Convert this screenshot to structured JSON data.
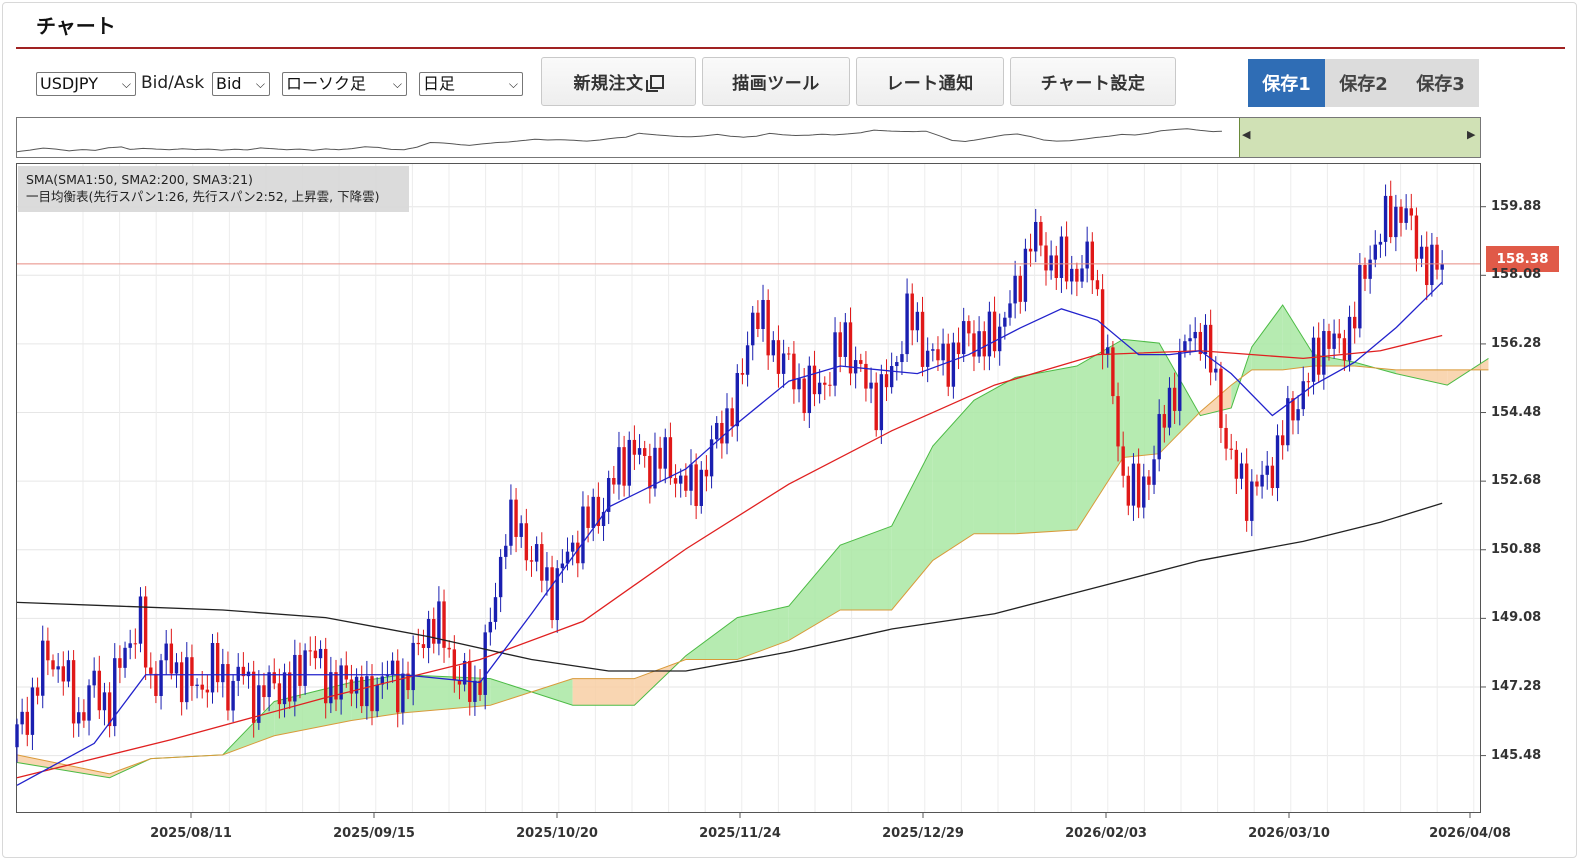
{
  "title": "チャート",
  "toolbar": {
    "symbol": "USDJPY",
    "bidask_label": "Bid/Ask",
    "bidask_value": "Bid",
    "chart_type": "ローソク足",
    "timeframe": "日足",
    "new_order": "新規注文",
    "draw_tools": "描画ツール",
    "rate_alert": "レート通知",
    "chart_settings": "チャート設定",
    "saves": [
      "保存1",
      "保存2",
      "保存3"
    ]
  },
  "legend": {
    "line1": "SMA(SMA1:50, SMA2:200, SMA3:21)",
    "line2": "一目均衡表(先行スパン1:26, 先行スパン2:52, 上昇雲, 下降雲)"
  },
  "current_price": "158.38",
  "colors": {
    "accent": "#2f6db5",
    "up_candle": "#1a1fb0",
    "down_candle": "#e01818",
    "sma50": "#e02020",
    "sma200": "#222222",
    "sma21": "#2222cc",
    "cloud_up": "#7fdc7f",
    "cloud_down": "#f5b47a",
    "price_tag": "#e05a48"
  },
  "chart_data": {
    "type": "candlestick",
    "symbol": "USDJPY",
    "y_ticks": [
      "159.88",
      "158.08",
      "156.28",
      "154.48",
      "152.68",
      "150.88",
      "149.08",
      "147.28",
      "145.48"
    ],
    "x_ticks": [
      "2025/08/11",
      "2025/09/15",
      "2025/10/20",
      "2025/11/24",
      "2025/12/29",
      "2026/02/03",
      "2026/03/10",
      "2026/04/08"
    ],
    "ylim": [
      144.0,
      161.0
    ],
    "last_price": 158.38,
    "close_path": [
      [
        0,
        146.0
      ],
      [
        3,
        147.0
      ],
      [
        6,
        148.2
      ],
      [
        9,
        147.6
      ],
      [
        12,
        146.5
      ],
      [
        15,
        147.3
      ],
      [
        18,
        146.8
      ],
      [
        21,
        148.4
      ],
      [
        24,
        148.9
      ],
      [
        26,
        147.4
      ],
      [
        29,
        148.0
      ],
      [
        32,
        147.6
      ],
      [
        35,
        147.2
      ],
      [
        38,
        147.8
      ],
      [
        41,
        147.3
      ],
      [
        44,
        147.6
      ],
      [
        47,
        146.9
      ],
      [
        50,
        147.5
      ],
      [
        53,
        147.1
      ],
      [
        56,
        148.3
      ],
      [
        59,
        147.8
      ],
      [
        62,
        147.2
      ],
      [
        65,
        147.6
      ],
      [
        68,
        146.8
      ],
      [
        71,
        147.7
      ],
      [
        74,
        147.2
      ],
      [
        77,
        147.9
      ],
      [
        80,
        149.0
      ],
      [
        83,
        148.6
      ],
      [
        86,
        147.4
      ],
      [
        89,
        147.2
      ],
      [
        92,
        148.8
      ],
      [
        95,
        151.6
      ],
      [
        98,
        151.3
      ],
      [
        101,
        150.5
      ],
      [
        104,
        149.8
      ],
      [
        107,
        150.7
      ],
      [
        110,
        151.5
      ],
      [
        113,
        151.9
      ],
      [
        116,
        152.7
      ],
      [
        119,
        153.6
      ],
      [
        122,
        153.1
      ],
      [
        125,
        153.3
      ],
      [
        128,
        152.9
      ],
      [
        131,
        152.4
      ],
      [
        134,
        153.1
      ],
      [
        137,
        154.2
      ],
      [
        140,
        154.8
      ],
      [
        143,
        157.2
      ],
      [
        146,
        156.4
      ],
      [
        149,
        155.8
      ],
      [
        152,
        155.2
      ],
      [
        155,
        155.0
      ],
      [
        158,
        155.6
      ],
      [
        161,
        156.5
      ],
      [
        164,
        155.4
      ],
      [
        167,
        154.8
      ],
      [
        170,
        155.4
      ],
      [
        173,
        157.1
      ],
      [
        176,
        156.3
      ],
      [
        179,
        155.8
      ],
      [
        182,
        156.0
      ],
      [
        185,
        156.6
      ],
      [
        188,
        156.2
      ],
      [
        191,
        156.8
      ],
      [
        194,
        157.5
      ],
      [
        197,
        159.1
      ],
      [
        200,
        158.6
      ],
      [
        203,
        158.3
      ],
      [
        206,
        158.2
      ],
      [
        209,
        158.4
      ],
      [
        212,
        155.7
      ],
      [
        215,
        152.8
      ],
      [
        218,
        152.2
      ],
      [
        221,
        153.4
      ],
      [
        224,
        154.8
      ],
      [
        227,
        156.2
      ],
      [
        230,
        156.7
      ],
      [
        233,
        155.2
      ],
      [
        236,
        153.1
      ],
      [
        239,
        152.4
      ],
      [
        242,
        152.6
      ],
      [
        245,
        153.5
      ],
      [
        248,
        154.6
      ],
      [
        251,
        155.4
      ],
      [
        254,
        156.5
      ],
      [
        257,
        156.1
      ],
      [
        260,
        157.1
      ],
      [
        263,
        158.7
      ],
      [
        266,
        159.4
      ],
      [
        269,
        159.9
      ],
      [
        272,
        158.9
      ],
      [
        275,
        158.2
      ],
      [
        277,
        158.38
      ]
    ],
    "series": [
      {
        "name": "SMA1:50",
        "points": [
          [
            0,
            144.9
          ],
          [
            30,
            145.9
          ],
          [
            60,
            147.0
          ],
          [
            90,
            148.0
          ],
          [
            110,
            149.0
          ],
          [
            130,
            150.9
          ],
          [
            150,
            152.6
          ],
          [
            170,
            154.0
          ],
          [
            190,
            155.2
          ],
          [
            210,
            156.0
          ],
          [
            230,
            156.1
          ],
          [
            250,
            155.9
          ],
          [
            265,
            156.1
          ],
          [
            277,
            156.5
          ]
        ]
      },
      {
        "name": "SMA2:200",
        "points": [
          [
            0,
            149.5
          ],
          [
            20,
            149.4
          ],
          [
            40,
            149.3
          ],
          [
            60,
            149.1
          ],
          [
            80,
            148.6
          ],
          [
            100,
            148.0
          ],
          [
            115,
            147.7
          ],
          [
            130,
            147.7
          ],
          [
            150,
            148.2
          ],
          [
            170,
            148.8
          ],
          [
            190,
            149.2
          ],
          [
            210,
            149.9
          ],
          [
            230,
            150.6
          ],
          [
            250,
            151.1
          ],
          [
            265,
            151.6
          ],
          [
            277,
            152.1
          ]
        ]
      },
      {
        "name": "SMA3:21",
        "points": [
          [
            0,
            144.7
          ],
          [
            15,
            145.8
          ],
          [
            25,
            147.6
          ],
          [
            40,
            147.6
          ],
          [
            55,
            147.6
          ],
          [
            75,
            147.6
          ],
          [
            90,
            147.4
          ],
          [
            100,
            149.2
          ],
          [
            115,
            152.0
          ],
          [
            130,
            153.0
          ],
          [
            140,
            154.2
          ],
          [
            150,
            155.3
          ],
          [
            160,
            155.7
          ],
          [
            175,
            155.5
          ],
          [
            185,
            156.0
          ],
          [
            195,
            156.7
          ],
          [
            203,
            157.2
          ],
          [
            210,
            156.9
          ],
          [
            218,
            156.0
          ],
          [
            224,
            156.0
          ],
          [
            230,
            156.1
          ],
          [
            236,
            155.5
          ],
          [
            244,
            154.4
          ],
          [
            252,
            155.2
          ],
          [
            260,
            155.8
          ],
          [
            268,
            156.7
          ],
          [
            277,
            157.9
          ]
        ]
      }
    ],
    "cloud": {
      "span_a": [
        [
          0,
          145.3
        ],
        [
          18,
          144.9
        ],
        [
          26,
          145.4
        ],
        [
          40,
          145.5
        ],
        [
          50,
          146.9
        ],
        [
          65,
          147.4
        ],
        [
          75,
          147.6
        ],
        [
          92,
          147.5
        ],
        [
          108,
          146.8
        ],
        [
          120,
          146.8
        ],
        [
          130,
          148.1
        ],
        [
          140,
          149.1
        ],
        [
          150,
          149.4
        ],
        [
          160,
          151.0
        ],
        [
          170,
          151.5
        ],
        [
          178,
          153.6
        ],
        [
          186,
          154.8
        ],
        [
          194,
          155.4
        ],
        [
          206,
          155.7
        ],
        [
          215,
          156.4
        ],
        [
          222,
          156.3
        ],
        [
          230,
          154.4
        ],
        [
          236,
          154.6
        ],
        [
          240,
          156.2
        ],
        [
          246,
          157.3
        ],
        [
          252,
          156.0
        ],
        [
          260,
          155.8
        ],
        [
          268,
          155.5
        ],
        [
          278,
          155.2
        ],
        [
          286,
          155.9
        ]
      ],
      "span_b": [
        [
          0,
          145.5
        ],
        [
          18,
          145.0
        ],
        [
          26,
          145.4
        ],
        [
          40,
          145.5
        ],
        [
          50,
          146.0
        ],
        [
          65,
          146.4
        ],
        [
          75,
          146.6
        ],
        [
          92,
          146.8
        ],
        [
          108,
          147.5
        ],
        [
          120,
          147.5
        ],
        [
          130,
          148.0
        ],
        [
          140,
          148.0
        ],
        [
          150,
          148.5
        ],
        [
          160,
          149.3
        ],
        [
          170,
          149.3
        ],
        [
          178,
          150.6
        ],
        [
          186,
          151.3
        ],
        [
          194,
          151.3
        ],
        [
          206,
          151.4
        ],
        [
          215,
          153.3
        ],
        [
          222,
          153.4
        ],
        [
          230,
          154.5
        ],
        [
          236,
          155.2
        ],
        [
          240,
          155.6
        ],
        [
          246,
          155.6
        ],
        [
          252,
          155.7
        ],
        [
          260,
          155.7
        ],
        [
          268,
          155.6
        ],
        [
          278,
          155.6
        ],
        [
          286,
          155.6
        ]
      ]
    }
  }
}
